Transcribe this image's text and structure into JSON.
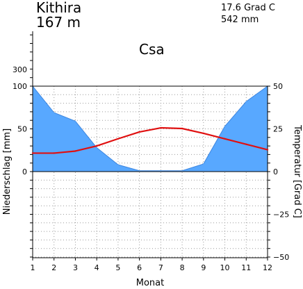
{
  "header": {
    "station": "Kithira",
    "elevation": "167  m",
    "annual_temperature": "17.6  Grad C",
    "annual_precipitation": "542  mm",
    "climate_class": "Csa"
  },
  "chart_data": {
    "type": "area",
    "title": "Kithira",
    "xlabel": "Monat",
    "ylabel_left": "Niederschlag [mm]",
    "ylabel_right": "Temperatur  [Grad C]",
    "x": [
      1,
      2,
      3,
      4,
      5,
      6,
      7,
      8,
      9,
      10,
      11,
      12
    ],
    "x_ticks": [
      "1",
      "2",
      "3",
      "4",
      "5",
      "6",
      "7",
      "8",
      "9",
      "10",
      "11",
      "12"
    ],
    "left_ticks": [
      "100",
      "50",
      "0"
    ],
    "left_extra_tick": "300",
    "right_ticks": [
      "50",
      "25",
      "0",
      "−25",
      "−50"
    ],
    "ylim_precipitation": [
      0,
      100
    ],
    "ylim_temperature": [
      -50,
      50
    ],
    "grid": true,
    "series": [
      {
        "name": "Niederschlag",
        "kind": "area",
        "axis": "left",
        "color": "#58a8ff",
        "values": [
          100,
          69,
          59,
          28,
          8,
          1,
          1,
          1,
          9,
          53,
          82,
          100
        ]
      },
      {
        "name": "Temperatur",
        "kind": "line",
        "axis": "right",
        "color": "#e01010",
        "values": [
          10.8,
          10.8,
          12.0,
          15.0,
          19.2,
          23.2,
          25.6,
          25.2,
          22.4,
          19.2,
          16.0,
          12.8
        ]
      }
    ]
  }
}
